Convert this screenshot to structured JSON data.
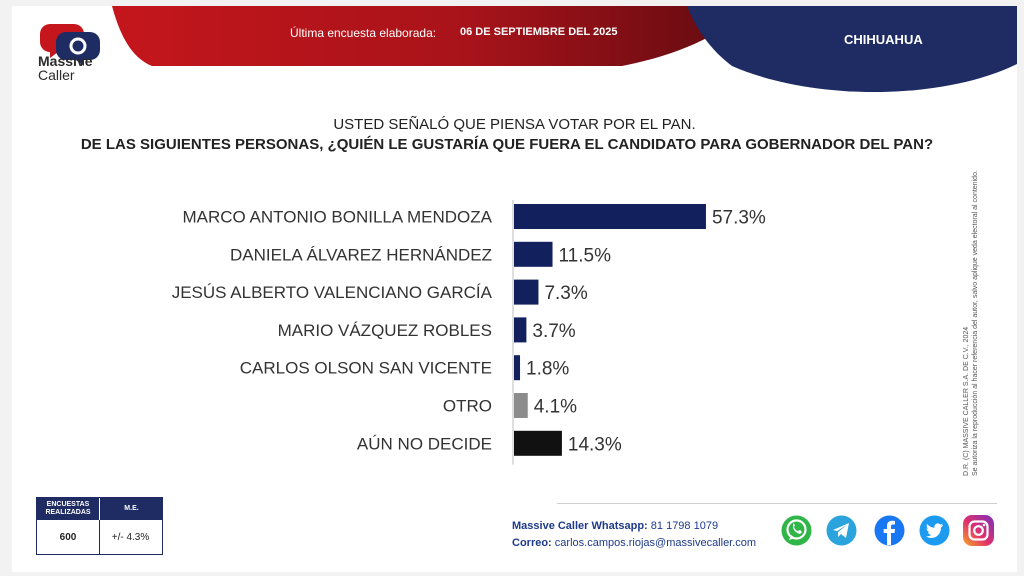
{
  "header": {
    "brand_line1": "Massive",
    "brand_line2": "Caller",
    "last_survey_label": "Última encuesta elaborada:",
    "last_survey_date": "06 DE SEPTIEMBRE DEL 2025",
    "state": "CHIHUAHUA"
  },
  "question": {
    "line1": "USTED SEÑALÓ QUE PIENSA VOTAR POR EL PAN.",
    "line2": "DE LAS SIGUIENTES PERSONAS, ¿QUIÉN LE GUSTARÍA QUE FUERA EL CANDIDATO PARA GOBERNADOR DEL PAN?"
  },
  "chart_data": {
    "type": "bar",
    "orientation": "horizontal",
    "categories": [
      "MARCO ANTONIO BONILLA MENDOZA",
      "DANIELA ÁLVAREZ HERNÁNDEZ",
      "JESÚS ALBERTO VALENCIANO GARCÍA",
      "MARIO VÁZQUEZ ROBLES",
      "CARLOS OLSON SAN VICENTE",
      "OTRO",
      "AÚN NO DECIDE"
    ],
    "values": [
      57.3,
      11.5,
      7.3,
      3.7,
      1.8,
      4.1,
      14.3
    ],
    "labels": [
      "57.3%",
      "11.5%",
      "7.3%",
      "3.7%",
      "1.8%",
      "4.1%",
      "14.3%"
    ],
    "colors": [
      "#12215e",
      "#12215e",
      "#12215e",
      "#12215e",
      "#12215e",
      "#8c8c8c",
      "#111111"
    ],
    "xlim": [
      0,
      100
    ],
    "grid": false,
    "legend": "none"
  },
  "sample_table": {
    "col1_header": "ENCUESTAS REALIZADAS",
    "col2_header": "M.E.",
    "col1_value": "600",
    "col2_value": "+/- 4.3%"
  },
  "contact": {
    "whatsapp_label": "Massive Caller Whatsapp:",
    "whatsapp_number": "81 1798 1079",
    "email_label": "Correo:",
    "email": "carlos.campos.riojas@massivecaller.com"
  },
  "social_icons": [
    "whatsapp-icon",
    "telegram-icon",
    "facebook-icon",
    "twitter-icon",
    "instagram-icon"
  ],
  "side_note": {
    "line1": "D.R. (C) MASSIVE CALLER S.A. DE C.V., 2024",
    "line2": "Se autoriza la reproducción al hacer referencia del autor, salvo aplique veda electoral al contenido."
  },
  "colors": {
    "navy": "#1e2c63",
    "red": "#b3141c",
    "bar_primary": "#12215e",
    "bar_other": "#8c8c8c",
    "bar_undecided": "#111111"
  }
}
